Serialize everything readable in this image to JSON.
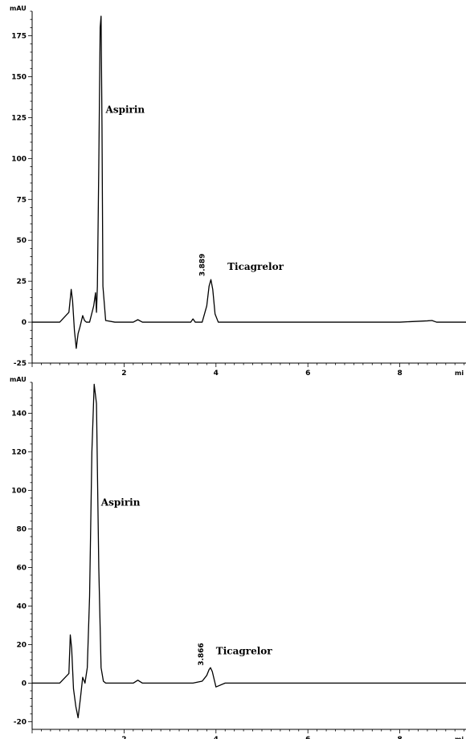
{
  "chart_data": [
    {
      "type": "line",
      "ylabel": "mAU",
      "xlabel": "mi",
      "xlim": [
        0,
        10
      ],
      "ylim": [
        -25,
        190
      ],
      "xticks": [
        2,
        4,
        6,
        8
      ],
      "yticks": [
        -25,
        0,
        25,
        50,
        75,
        100,
        125,
        150,
        175
      ],
      "annotations": [
        {
          "text": "Aspirin",
          "x": 1.6,
          "y": 128
        },
        {
          "text": "Ticagrelor",
          "x": 4.25,
          "y": 32
        }
      ],
      "retention_labels": [
        {
          "text": "3.889",
          "x": 3.89,
          "y": 28
        }
      ],
      "series": [
        {
          "x": [
            0,
            0.6,
            0.8,
            0.85,
            0.88,
            0.92,
            0.96,
            1.0,
            1.04,
            1.1,
            1.14,
            1.18,
            1.25,
            1.34,
            1.38,
            1.4,
            1.42,
            1.45,
            1.48,
            1.5,
            1.52,
            1.54,
            1.6,
            1.8,
            2.2,
            2.3,
            2.4,
            3.45,
            3.5,
            3.55,
            3.7,
            3.8,
            3.85,
            3.89,
            3.93,
            3.98,
            4.05,
            4.2,
            5.0,
            6.0,
            7.0,
            8.0,
            8.6,
            8.7,
            8.8,
            9.0,
            10.0
          ],
          "y": [
            0,
            0,
            6,
            20,
            13,
            -5,
            -16,
            -7,
            -3,
            4,
            1,
            0,
            0,
            10,
            18,
            6,
            22,
            95,
            180,
            187,
            120,
            22,
            1,
            0,
            0,
            1.5,
            0,
            0,
            2,
            0,
            0,
            10,
            22,
            26,
            20,
            5,
            0,
            0,
            0,
            0,
            0,
            0,
            0.8,
            1,
            0,
            0,
            0
          ]
        }
      ]
    },
    {
      "type": "line",
      "ylabel": "mAU",
      "xlabel": "mi",
      "xlim": [
        0,
        10
      ],
      "ylim": [
        -24,
        156
      ],
      "xticks": [
        2,
        4,
        6,
        8
      ],
      "yticks": [
        -20,
        0,
        20,
        40,
        60,
        80,
        100,
        120,
        140
      ],
      "annotations": [
        {
          "text": "Aspirin",
          "x": 1.5,
          "y": 92
        },
        {
          "text": "Ticagrelor",
          "x": 4.0,
          "y": 15
        }
      ],
      "retention_labels": [
        {
          "text": "3.866",
          "x": 3.866,
          "y": 9
        }
      ],
      "series": [
        {
          "x": [
            0,
            0.6,
            0.8,
            0.83,
            0.86,
            0.9,
            0.95,
            1.0,
            1.05,
            1.1,
            1.15,
            1.2,
            1.25,
            1.3,
            1.35,
            1.4,
            1.45,
            1.5,
            1.55,
            1.6,
            1.8,
            2.2,
            2.3,
            2.4,
            3.3,
            3.5,
            3.7,
            3.8,
            3.85,
            3.88,
            3.92,
            3.96,
            4.0,
            4.2,
            5.0,
            6.0,
            7.0,
            8.0,
            9.0,
            10.0
          ],
          "y": [
            0,
            0,
            5,
            25,
            18,
            -3,
            -12,
            -18,
            -8,
            3,
            0,
            8,
            45,
            120,
            155,
            145,
            60,
            8,
            1,
            0,
            0,
            0,
            1.5,
            0,
            0,
            0,
            1,
            4,
            7,
            8,
            6,
            2,
            -2,
            0,
            0,
            0,
            0,
            0,
            0,
            0
          ]
        }
      ]
    }
  ]
}
